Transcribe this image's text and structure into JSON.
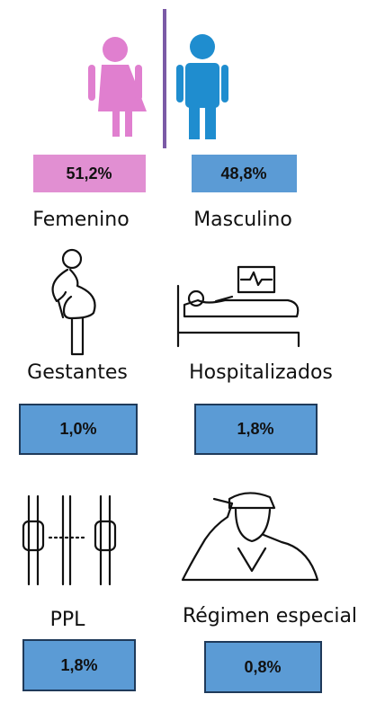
{
  "items": [
    {
      "label": "Femenino",
      "value": "51,2%"
    },
    {
      "label": "Masculino",
      "value": "48,8%"
    },
    {
      "label": "Gestantes",
      "value": "1,0%"
    },
    {
      "label": "Hospitalizados",
      "value": "1,8%"
    },
    {
      "label": "PPL",
      "value": "1,8%"
    },
    {
      "label": "Régimen especial",
      "value": "0,8%"
    }
  ]
}
